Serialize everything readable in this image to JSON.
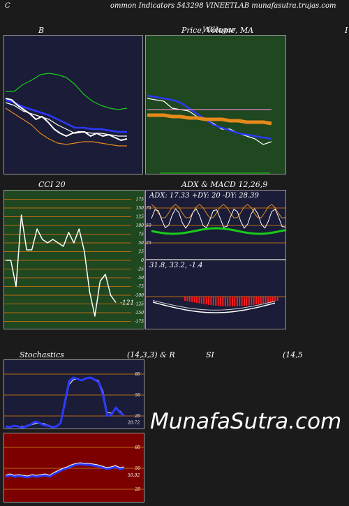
{
  "header": {
    "left_char": "C",
    "title": "ommon  Indicators 543298  VINEETLAB munafasutra.trujas.com"
  },
  "colors": {
    "page_bg": "#1b1b1b",
    "navy_bg": "#1a1c38",
    "green_bg": "#1f4720",
    "red_bg": "#7d0000",
    "grid_orange": "#b86a10",
    "white": "#ffffff",
    "blue": "#2b39ff",
    "green": "#19cc19",
    "orange": "#e58a1a",
    "pink": "#e887c8",
    "red": "#ff1a1a"
  },
  "panels": {
    "bollinger": {
      "title": "B"
    },
    "price": {
      "title": "Price,  Volume,  MA",
      "overlap": "Wiliagar"
    },
    "right_edge": {
      "title": "I"
    },
    "cci": {
      "title": "CCI 20",
      "value_label": "-121"
    },
    "adx_macd": {
      "title": "ADX  & MACD 12,26,9",
      "adx_text": "ADX: 17.33  +DY: 20  -DY: 28.39",
      "macd_text": "31.8,  33.2,  -1.4"
    },
    "stochastics": {
      "title": "Stochastics",
      "params": "(14,3,3) & R",
      "value_label": "20.72"
    },
    "rsi": {
      "title": "SI",
      "params": "(14,5",
      "value_label": "50.02"
    }
  },
  "watermark": "MunafaSutra.com",
  "chart_data": [
    {
      "type": "line",
      "name": "bollinger",
      "series": [
        {
          "color": "#19cc19",
          "values": [
            0.6,
            0.6,
            0.65,
            0.68,
            0.72,
            0.73,
            0.72,
            0.7,
            0.65,
            0.58,
            0.53,
            0.5,
            0.48,
            0.47,
            0.48
          ]
        },
        {
          "color": "#ffffff",
          "values": [
            0.52,
            0.5,
            0.46,
            0.44,
            0.42,
            0.4,
            0.36,
            0.33,
            0.3,
            0.31,
            0.3,
            0.3,
            0.29,
            0.28,
            0.28
          ]
        },
        {
          "color": "#2b39ff",
          "values": [
            0.54,
            0.52,
            0.49,
            0.47,
            0.45,
            0.43,
            0.4,
            0.37,
            0.34,
            0.34,
            0.33,
            0.33,
            0.32,
            0.31,
            0.31
          ]
        },
        {
          "color": "#e58a1a",
          "values": [
            0.48,
            0.44,
            0.4,
            0.36,
            0.3,
            0.26,
            0.23,
            0.22,
            0.23,
            0.24,
            0.24,
            0.23,
            0.22,
            0.21,
            0.21
          ]
        }
      ],
      "price_line": [
        0.55,
        0.54,
        0.5,
        0.47,
        0.44,
        0.4,
        0.42,
        0.38,
        0.33,
        0.3,
        0.28,
        0.3,
        0.31,
        0.31,
        0.28,
        0.3,
        0.28,
        0.29,
        0.27,
        0.25,
        0.26
      ]
    },
    {
      "type": "line",
      "name": "price_volume_ma",
      "series": [
        {
          "color": "#ffffff",
          "values": [
            0.55,
            0.54,
            0.53,
            0.48,
            0.47,
            0.46,
            0.42,
            0.4,
            0.37,
            0.33,
            0.33,
            0.3,
            0.28,
            0.26,
            0.22,
            0.24
          ]
        },
        {
          "color": "#2b39ff",
          "values": [
            0.57,
            0.56,
            0.55,
            0.54,
            0.52,
            0.48,
            0.44,
            0.4,
            0.36,
            0.34,
            0.32,
            0.3,
            0.29,
            0.28,
            0.27,
            0.26
          ]
        },
        {
          "color": "#e58a1a",
          "values": [
            0.43,
            0.43,
            0.43,
            0.42,
            0.42,
            0.41,
            0.41,
            0.4,
            0.4,
            0.4,
            0.39,
            0.39,
            0.38,
            0.38,
            0.38,
            0.37
          ]
        },
        {
          "color": "#e887c8",
          "values": [
            0.47,
            0.47,
            0.47,
            0.47,
            0.47,
            0.47,
            0.47,
            0.47,
            0.47,
            0.47,
            0.47,
            0.47,
            0.47,
            0.47,
            0.47,
            0.47
          ]
        }
      ]
    },
    {
      "type": "line",
      "name": "cci",
      "y_ticks": [
        175,
        150,
        125,
        100,
        75,
        50,
        25,
        0,
        -25,
        -50,
        -75,
        -100,
        -125,
        -150,
        -175
      ],
      "ylim": [
        -200,
        200
      ],
      "values": [
        0,
        0,
        -75,
        130,
        30,
        30,
        90,
        60,
        50,
        60,
        50,
        40,
        80,
        50,
        90,
        25,
        -90,
        -160,
        -60,
        -40,
        -100,
        -121
      ]
    },
    {
      "type": "line",
      "name": "adx_macd",
      "adx": {
        "adx": 17.33,
        "plus_di": 20,
        "minus_di": 28.39
      },
      "macd": {
        "macd": 31.8,
        "signal": 33.2,
        "histogram": -1.4
      },
      "y_ticks": [
        75,
        50,
        25
      ]
    },
    {
      "type": "line",
      "name": "stochastics",
      "y_ticks": [
        80,
        50,
        20
      ],
      "ylim": [
        0,
        100
      ],
      "k": [
        5,
        4,
        6,
        5,
        3,
        6,
        8,
        12,
        10,
        7,
        6,
        4,
        5,
        10,
        40,
        70,
        75,
        73,
        71,
        74,
        75,
        72,
        68,
        50,
        20,
        22,
        32,
        25,
        20.72
      ],
      "d": [
        5,
        5,
        5,
        5,
        5,
        5,
        7,
        9,
        10,
        9,
        7,
        5,
        5,
        10,
        35,
        65,
        72,
        73,
        72,
        74,
        75,
        73,
        70,
        55,
        25,
        24,
        30,
        27,
        21
      ]
    },
    {
      "type": "line",
      "name": "rsi",
      "y_ticks": [
        80,
        50,
        20
      ],
      "ylim": [
        0,
        100
      ],
      "values": [
        38,
        40,
        38,
        39,
        38,
        37,
        39,
        38,
        39,
        40,
        38,
        42,
        45,
        48,
        50,
        53,
        55,
        56,
        55,
        55,
        54,
        53,
        51,
        49,
        50,
        52,
        49,
        50.02
      ]
    }
  ]
}
